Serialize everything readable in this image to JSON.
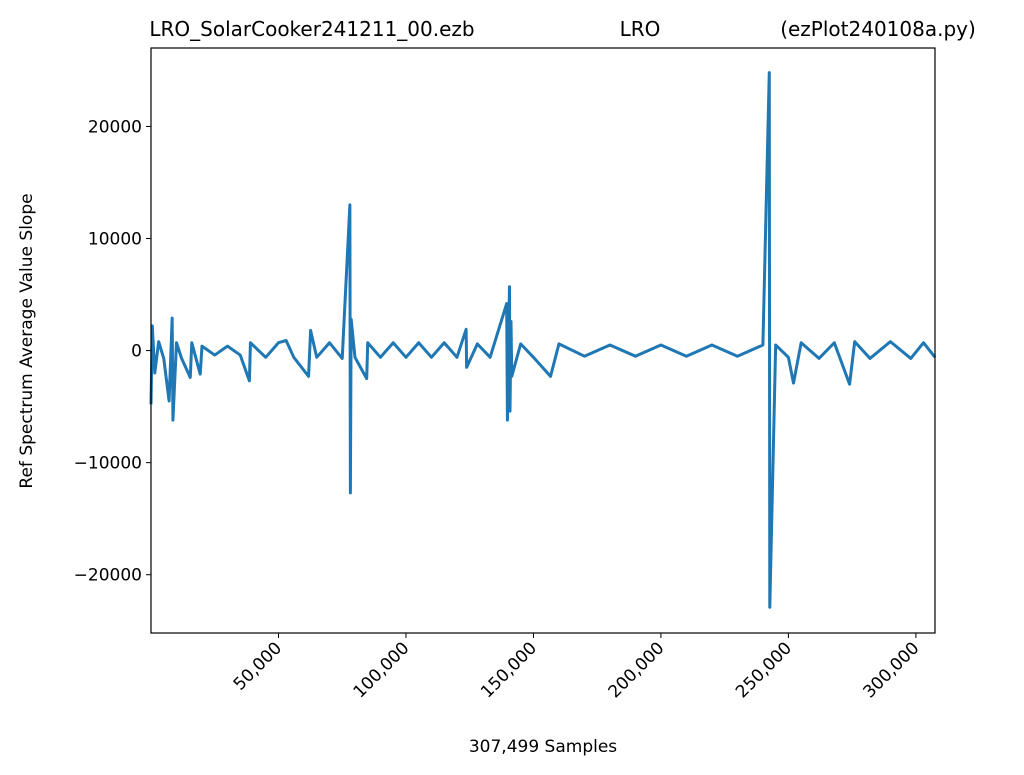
{
  "chart_data": {
    "type": "line",
    "title_left": "LRO_SolarCooker241211_00.ezb",
    "title_center": "LRO",
    "title_right": "(ezPlot240108a.py)",
    "xlabel": "307,499 Samples",
    "ylabel": "Ref Spectrum Average Value Slope",
    "xlim": [
      0,
      307499
    ],
    "ylim": [
      -25200,
      27000
    ],
    "xticks": [
      {
        "value": 50000,
        "label": "50,000"
      },
      {
        "value": 100000,
        "label": "100,000"
      },
      {
        "value": 150000,
        "label": "150,000"
      },
      {
        "value": 200000,
        "label": "200,000"
      },
      {
        "value": 250000,
        "label": "250,000"
      },
      {
        "value": 300000,
        "label": "300,000"
      }
    ],
    "yticks": [
      {
        "value": -20000,
        "label": "−20000"
      },
      {
        "value": -10000,
        "label": "−10000"
      },
      0,
      10000,
      20000
    ],
    "grid": false,
    "color": "#1f77b4",
    "x": [
      0,
      500,
      1500,
      3000,
      5000,
      7100,
      8300,
      8600,
      10000,
      12000,
      15400,
      16000,
      19300,
      20000,
      25000,
      30000,
      35000,
      38600,
      39000,
      45000,
      50000,
      53000,
      56000,
      61800,
      62600,
      65000,
      70000,
      75000,
      78000,
      78200,
      78500,
      80000,
      84600,
      85000,
      90000,
      95000,
      100000,
      105000,
      110000,
      115000,
      120000,
      123600,
      123800,
      128000,
      133000,
      139500,
      139800,
      140600,
      140800,
      141200,
      141500,
      145000,
      150000,
      156700,
      160000,
      170000,
      180000,
      190000,
      200000,
      210000,
      220000,
      230000,
      240000,
      242500,
      242700,
      245000,
      250000,
      252000,
      255000,
      262000,
      268000,
      274000,
      276000,
      282000,
      290000,
      298000,
      303000,
      307499
    ],
    "values": [
      -4800,
      2200,
      -2000,
      800,
      -700,
      -4500,
      2900,
      -6200,
      700,
      -700,
      -2400,
      700,
      -2100,
      400,
      -400,
      400,
      -400,
      -2700,
      700,
      -600,
      700,
      900,
      -600,
      -2300,
      1800,
      -600,
      700,
      -700,
      13000,
      -12700,
      2800,
      -600,
      -2500,
      700,
      -600,
      700,
      -600,
      700,
      -600,
      700,
      -600,
      1900,
      -1500,
      600,
      -600,
      4200,
      -6200,
      5700,
      -5400,
      2600,
      -2300,
      600,
      -600,
      -2300,
      600,
      -500,
      500,
      -500,
      500,
      -500,
      500,
      -500,
      500,
      24800,
      -22900,
      500,
      -600,
      -2900,
      700,
      -700,
      700,
      -3000,
      800,
      -700,
      800,
      -700,
      700,
      -600
    ]
  }
}
